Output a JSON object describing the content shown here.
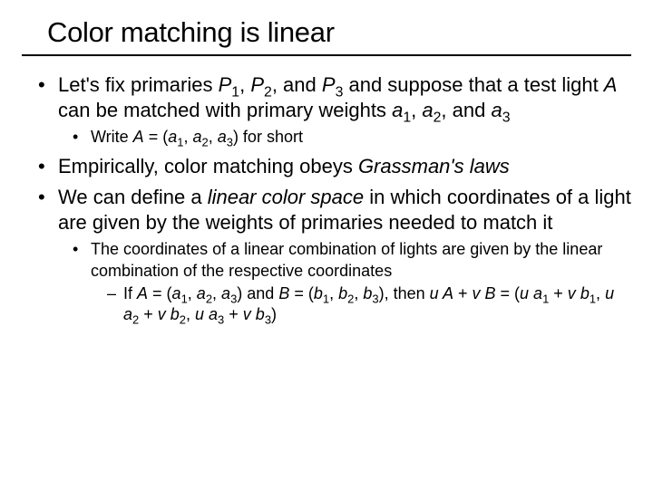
{
  "title": "Color matching is linear",
  "bullets": {
    "b1_pre": "Let's fix primaries ",
    "b1_p1": "P",
    "b1_s1": "1",
    "b1_c1": ", ",
    "b1_p2": "P",
    "b1_s2": "2",
    "b1_c2": ", and ",
    "b1_p3": "P",
    "b1_s3": "3",
    "b1_mid": " and suppose that a test light ",
    "b1_a": "A",
    "b1_mid2": " can be matched with primary weights ",
    "b1_a1": "a",
    "b1_sa1": "1",
    "b1_ca1": ", ",
    "b1_a2": "a",
    "b1_sa2": "2",
    "b1_ca2": ", and ",
    "b1_a3": "a",
    "b1_sa3": "3",
    "b1sub_pre": "Write ",
    "b1sub_A": "A",
    "b1sub_eq": " = (",
    "b1sub_a1": "a",
    "b1sub_s1": "1",
    "b1sub_c1": ", ",
    "b1sub_a2": "a",
    "b1sub_s2": "2",
    "b1sub_c2": ", ",
    "b1sub_a3": "a",
    "b1sub_s3": "3",
    "b1sub_post": ") for short",
    "b2_pre": "Empirically, color matching obeys ",
    "b2_em": "Grassman's laws",
    "b3_pre": "We can define a ",
    "b3_em": "linear color space",
    "b3_post": " in which coordinates of a light are given by the weights of primaries needed to match it",
    "b3sub": "The coordinates of a linear combination of lights are given by the linear combination of the respective coordinates",
    "b3sub2_pre": "If ",
    "b3sub2_A": "A",
    "b3sub2_eqA": " = (",
    "b3sub2_a1": "a",
    "b3sub2_sa1": "1",
    "b3sub2_ca1": ", ",
    "b3sub2_a2": "a",
    "b3sub2_sa2": "2",
    "b3sub2_ca2": ", ",
    "b3sub2_a3": "a",
    "b3sub2_sa3": "3",
    "b3sub2_mid1": ") and ",
    "b3sub2_B": "B",
    "b3sub2_eqB": " = (",
    "b3sub2_b1": "b",
    "b3sub2_sb1": "1",
    "b3sub2_cb1": ", ",
    "b3sub2_b2": "b",
    "b3sub2_sb2": "2",
    "b3sub2_cb2": ", ",
    "b3sub2_b3": "b",
    "b3sub2_sb3": "3",
    "b3sub2_mid2": "), then ",
    "b3sub2_u1": "u ",
    "b3sub2_Av": "A",
    "b3sub2_plus1": " + ",
    "b3sub2_v1": "v ",
    "b3sub2_Bv": "B",
    "b3sub2_eq3": " = (",
    "b3sub2_u2": "u ",
    "b3sub2_ra1": "a",
    "b3sub2_rsa1": "1",
    "b3sub2_pl2": " + ",
    "b3sub2_v2": "v ",
    "b3sub2_rb1": "b",
    "b3sub2_rsb1": "1",
    "b3sub2_rc1": ", ",
    "b3sub2_u3": "u ",
    "b3sub2_ra2": "a",
    "b3sub2_rsa2": "2",
    "b3sub2_pl3": " + ",
    "b3sub2_v3": "v ",
    "b3sub2_rb2": "b",
    "b3sub2_rsb2": "2",
    "b3sub2_rc2": ", ",
    "b3sub2_u4": "u ",
    "b3sub2_ra3": "a",
    "b3sub2_rsa3": "3",
    "b3sub2_pl4": " + ",
    "b3sub2_v4": "v ",
    "b3sub2_rb3": "b",
    "b3sub2_rsb3": "3",
    "b3sub2_close": ")"
  }
}
